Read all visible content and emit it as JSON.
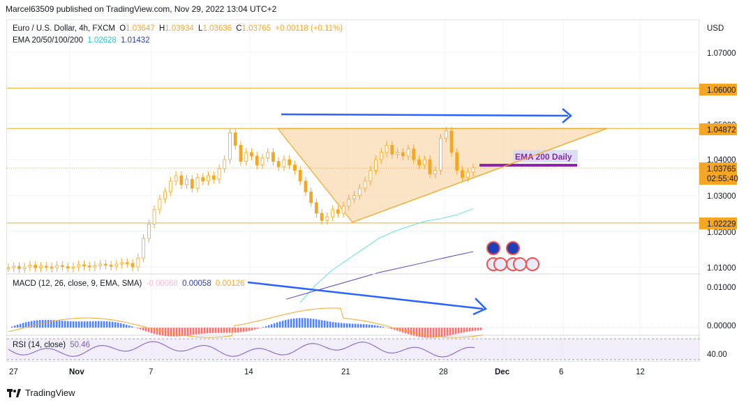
{
  "header": {
    "publisher": "Marcel63509 published on TradingView.com, Nov 29, 2022 13:04 UTC+2"
  },
  "legend": {
    "symbol": "Euro / U.S. Dollar, 4h, FXCM",
    "o_label": "O",
    "o": "1.03647",
    "h_label": "H",
    "h": "1.03934",
    "l_label": "L",
    "l": "1.03636",
    "c_label": "C",
    "c": "1.03765",
    "change": "+0.00118 (+0.11%)",
    "ema_label": "EMA 20/50/100/200",
    "ema1": "1.02628",
    "ema2": "1.01432"
  },
  "macd_legend": {
    "label": "MACD (12, 26, close, 9, EMA, SMA)",
    "v1": "-0.00068",
    "v2": "0.00058",
    "v3": "0.00126"
  },
  "rsi_legend": {
    "label": "RSI (14, close)",
    "value": "50.46"
  },
  "annotation": {
    "ema_daily": "EMA 200 Daily"
  },
  "price_axis": {
    "currency": "USD",
    "ticks": [
      "1.07000",
      "1.04000",
      "1.03000",
      "1.02000",
      "1.01000"
    ],
    "obscured_tick": "1.05000",
    "macd_ticks": [
      "0.01000",
      "0.00000"
    ],
    "rsi_ticks": [
      "40.00"
    ],
    "badges": {
      "level_high": "1.06000",
      "level_mid": "1.04872",
      "last_price": "1.03765",
      "countdown": "02:55:40",
      "level_low": "1.02229"
    }
  },
  "date_axis": {
    "labels": [
      "27",
      "Nov",
      "7",
      "14",
      "21",
      "28",
      "Dec",
      "6",
      "12"
    ]
  },
  "footer": {
    "brand": "TradingView"
  },
  "colors": {
    "up": "#26a69a",
    "down": "#ef5350",
    "candle": "#f5a623",
    "levels": "#f5a623",
    "triangle_fill": "#f9d9b3",
    "ema1": "#5ce1e6",
    "ema2": "#5b3fbf",
    "arrows": "#2962ff",
    "ema_daily": "#8e24aa",
    "macd_hist_up": "#2962ff",
    "macd_hist_down": "#ef5350"
  },
  "chart_data": {
    "type": "candlestick",
    "symbol": "EURUSD",
    "timeframe": "4h",
    "ylim": [
      1.007,
      1.076
    ],
    "levels": [
      1.06,
      1.04872,
      1.02229
    ],
    "last_price": 1.03765,
    "ema_200_daily": 1.0385,
    "closes": [
      1.0098,
      1.0102,
      1.0095,
      1.01,
      1.0105,
      1.0098,
      1.0102,
      1.01,
      1.0098,
      1.0104,
      1.0101,
      1.0097,
      1.01,
      1.0106,
      1.0103,
      1.01,
      1.0104,
      1.0108,
      1.0105,
      1.0102,
      1.0108,
      1.0112,
      1.011,
      1.01,
      1.0125,
      1.018,
      1.022,
      1.026,
      1.029,
      1.031,
      1.034,
      1.0355,
      1.033,
      1.0345,
      1.032,
      1.035,
      1.034,
      1.0355,
      1.0345,
      1.0375,
      1.04,
      1.0475,
      1.044,
      1.0395,
      1.042,
      1.041,
      1.0385,
      1.0405,
      1.042,
      1.0395,
      1.038,
      1.04,
      1.0385,
      1.037,
      1.034,
      1.031,
      1.028,
      1.025,
      1.023,
      1.024,
      1.026,
      1.025,
      1.027,
      1.029,
      1.03,
      1.032,
      1.034,
      1.037,
      1.04,
      1.042,
      1.044,
      1.0415,
      1.042,
      1.041,
      1.043,
      1.04,
      1.0385,
      1.04,
      1.036,
      1.037,
      1.046,
      1.048,
      1.042,
      1.037,
      1.035,
      1.0365,
      1.0377
    ],
    "ema_20_50": [
      1.0,
      1.005,
      1.009,
      1.012,
      1.015,
      1.018,
      1.02,
      1.0215,
      1.0228,
      1.0236,
      1.0246,
      1.0263
    ],
    "ema_100_200": [
      1.001,
      1.0035,
      1.006,
      1.0085,
      1.0104,
      1.0124,
      1.0143
    ],
    "pattern": {
      "type": "ascending triangle",
      "resistance": 1.04872,
      "support_start": 1.0225,
      "support_end": 1.0335
    },
    "macd": {
      "params": "12, 26, close, 9, EMA, SMA",
      "histogram": -0.00068,
      "macd": 0.00058,
      "signal": 0.00126
    },
    "rsi": {
      "period": 14,
      "value": 50.46
    },
    "x_labels": [
      "27",
      "Nov",
      "7",
      "14",
      "21",
      "28",
      "Dec",
      "6",
      "12"
    ]
  }
}
